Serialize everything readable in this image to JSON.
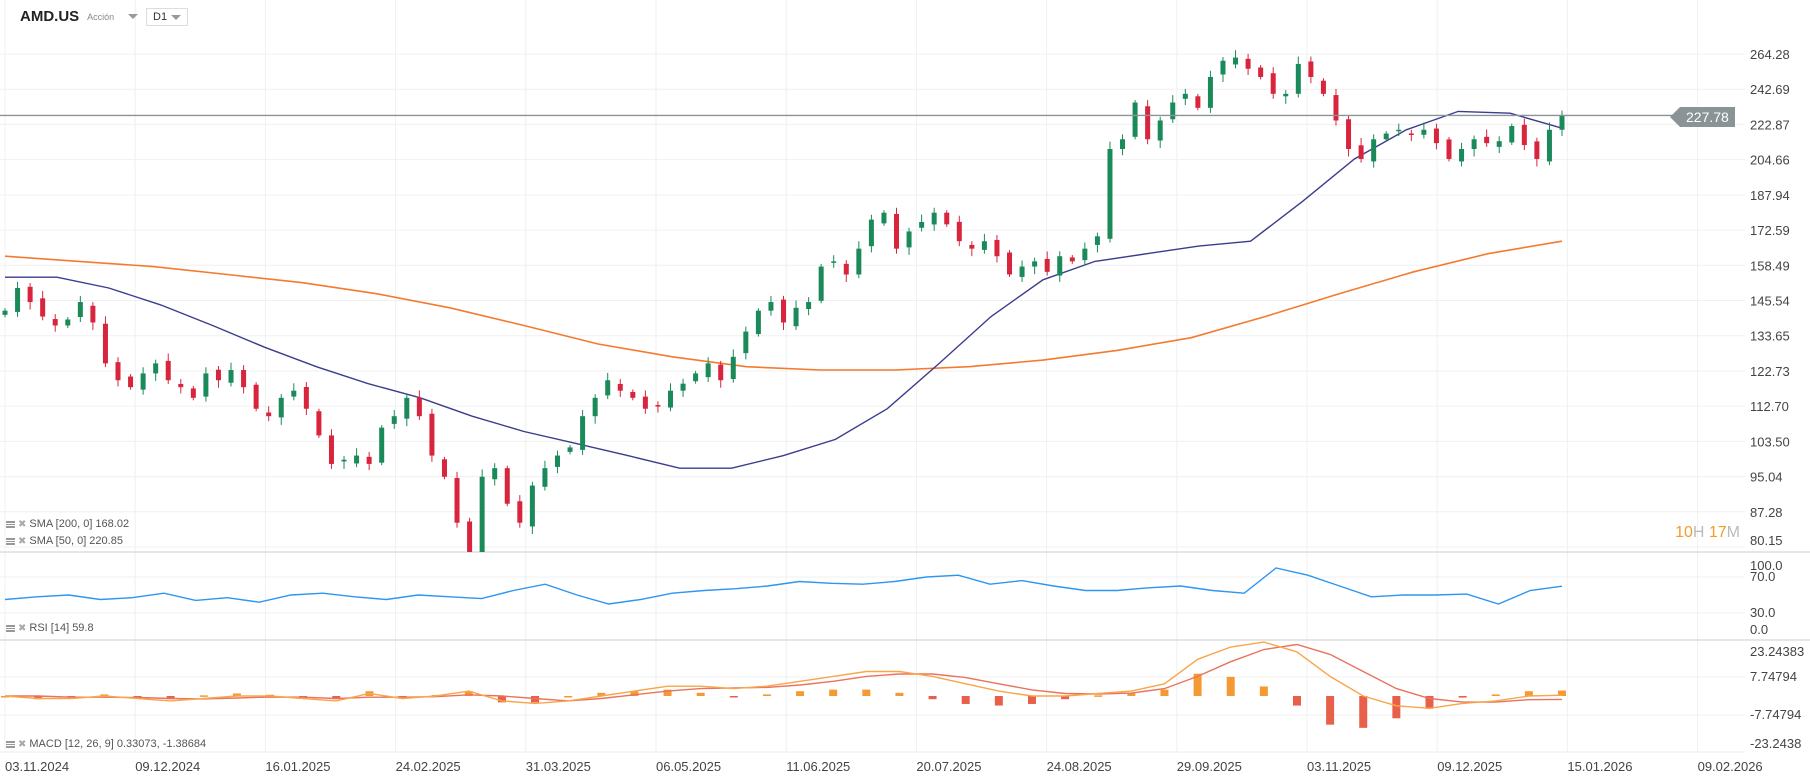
{
  "header": {
    "symbol": "AMD.US",
    "instrument_type": "Acción",
    "timeframe": "D1"
  },
  "current_price_label": "227.78",
  "countdown": {
    "hours": "10",
    "hours_unit": "H",
    "minutes": "17",
    "minutes_unit": "M"
  },
  "legends": {
    "sma200": "SMA [200,  0] 168.02",
    "sma50": "SMA [50,  0] 220.85",
    "rsi": "RSI  [14]  59.8",
    "macd": "MACD  [12,  26,  9]  0.33073,  -1.38684"
  },
  "colors": {
    "up": "#1a8a5a",
    "down": "#d8243c",
    "sma200": "#f47a30",
    "sma50": "#3b3d8c",
    "rsi": "#2d96f0",
    "macd_line": "#f9a54a",
    "macd_signal": "#e8735e",
    "hist_pos": "#f59a33",
    "hist_neg": "#e8604a",
    "price_line": "#8a9497",
    "countdown_digits": "#f39c26"
  },
  "chart_data": [
    {
      "type": "candlestick",
      "scale": "log",
      "ylim": [
        80.15,
        264.28
      ],
      "x_range": [
        "03.11.2024",
        "13.01.2026"
      ],
      "y_ticks": [
        "264.28",
        "242.69",
        "222.87",
        "204.66",
        "187.94",
        "172.59",
        "158.49",
        "145.54",
        "133.65",
        "122.73",
        "112.70",
        "103.50",
        "95.04",
        "87.28",
        "80.15"
      ],
      "x_ticks": [
        "03.11.2024",
        "09.12.2024",
        "16.01.2025",
        "24.02.2025",
        "31.03.2025",
        "06.05.2025",
        "11.06.2025",
        "20.07.2025",
        "24.08.2025",
        "29.09.2025",
        "03.11.2025",
        "09.12.2025",
        "15.01.2026",
        "09.02.2026"
      ],
      "grid": true,
      "last_price": 227.78,
      "closes": [
        142,
        150,
        145,
        140,
        137,
        139,
        145,
        138,
        125,
        120,
        118,
        122,
        125,
        120,
        118,
        115,
        122,
        120,
        123,
        118,
        112,
        110,
        115,
        117,
        112,
        105,
        98,
        99,
        100,
        98,
        107,
        110,
        115,
        110,
        100,
        95,
        85,
        78,
        95,
        97,
        89,
        85,
        93,
        97,
        100,
        102,
        110,
        115,
        120,
        117,
        115,
        112,
        113,
        117,
        119,
        122,
        125,
        120,
        127,
        135,
        142,
        145,
        138,
        143,
        145,
        158,
        160,
        155,
        165,
        177,
        180,
        165,
        172,
        176,
        180,
        175,
        168,
        165,
        168,
        162,
        155,
        158,
        160,
        156,
        162,
        160,
        165,
        170,
        210,
        215,
        235,
        215,
        225,
        235,
        240,
        232,
        250,
        260,
        262,
        255,
        250,
        240,
        240,
        258,
        250,
        240,
        225,
        210,
        205,
        215,
        218,
        220,
        218,
        220,
        213,
        205,
        210,
        215,
        213,
        214,
        222,
        212,
        205,
        220,
        227.78
      ],
      "series": [
        {
          "name": "SMA [200, 0]",
          "values": [
            162,
            160,
            158,
            155,
            152,
            148,
            143,
            137,
            131,
            127,
            124,
            123,
            123,
            124,
            126,
            129,
            133,
            140,
            148,
            156,
            163,
            168.02
          ]
        },
        {
          "name": "SMA [50, 0]",
          "values": [
            154,
            154,
            150,
            144,
            137,
            130,
            124,
            119,
            115,
            110,
            106,
            103,
            100,
            97,
            97,
            100,
            104,
            112,
            125,
            140,
            153,
            160,
            163,
            166,
            168,
            185,
            205,
            220,
            230,
            229,
            220.85
          ]
        }
      ]
    },
    {
      "type": "line",
      "name": "RSI [14]",
      "ylim": [
        0,
        100
      ],
      "y_ticks": [
        "100.0",
        "70.0",
        "30.0",
        "0.0"
      ],
      "values": [
        45,
        48,
        50,
        45,
        47,
        52,
        44,
        47,
        42,
        50,
        52,
        48,
        45,
        50,
        48,
        46,
        55,
        62,
        50,
        40,
        45,
        52,
        55,
        57,
        60,
        65,
        63,
        62,
        65,
        70,
        72,
        62,
        66,
        60,
        55,
        55,
        58,
        60,
        55,
        52,
        80,
        72,
        60,
        48,
        50,
        50,
        51,
        40,
        55,
        59.8
      ]
    },
    {
      "type": "macd",
      "name": "MACD [12, 26, 9]",
      "ylim": [
        -23.2438,
        23.24383
      ],
      "y_ticks": [
        "23.24383",
        "7.74794",
        "-7.74794",
        "-23.2438"
      ],
      "macd": [
        0,
        -1,
        -1,
        0,
        -1,
        -2,
        -1,
        0,
        0,
        -1,
        -2,
        1,
        -1,
        0,
        2,
        -2,
        -3,
        -2,
        0,
        2,
        4,
        4,
        3,
        4,
        6,
        8,
        10,
        10,
        8,
        5,
        2,
        0,
        0,
        1,
        2,
        5,
        15,
        20,
        22,
        18,
        8,
        0,
        -4,
        -5,
        -3,
        -2,
        0,
        0.33073
      ],
      "signal": [
        0,
        0,
        -0.5,
        -0.5,
        -0.6,
        -1,
        -1.2,
        -0.8,
        -0.4,
        -0.5,
        -1,
        -0.5,
        -0.5,
        -0.3,
        0.5,
        0,
        -1,
        -2,
        -1,
        0.5,
        2,
        3,
        3.3,
        3.5,
        4.5,
        6,
        8,
        9,
        9,
        7.5,
        5,
        2.5,
        1,
        0.8,
        1.2,
        3,
        8,
        14,
        19,
        21,
        17,
        10,
        3,
        -1,
        -2.5,
        -2.5,
        -1.5,
        -1.38684
      ]
    }
  ]
}
